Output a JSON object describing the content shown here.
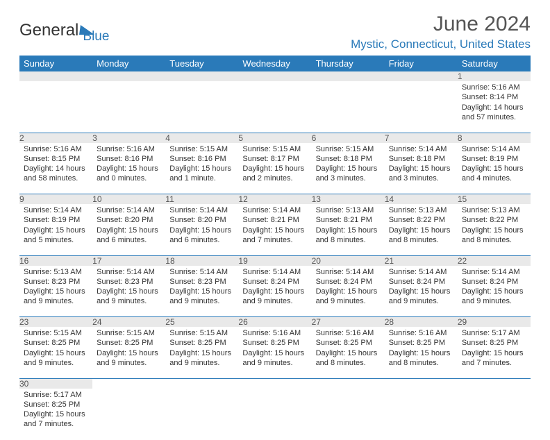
{
  "logo": {
    "text1": "General",
    "text2": "Blue"
  },
  "title": "June 2024",
  "location": "Mystic, Connecticut, United States",
  "colors": {
    "accent": "#2a7ab9",
    "header_text": "#ffffff",
    "daynum_bg": "#e9e9e9",
    "body_bg": "#ffffff",
    "text": "#333333"
  },
  "weekdays": [
    "Sunday",
    "Monday",
    "Tuesday",
    "Wednesday",
    "Thursday",
    "Friday",
    "Saturday"
  ],
  "weeks": [
    {
      "nums": [
        "",
        "",
        "",
        "",
        "",
        "",
        "1"
      ],
      "cells": [
        null,
        null,
        null,
        null,
        null,
        null,
        {
          "sunrise": "Sunrise: 5:16 AM",
          "sunset": "Sunset: 8:14 PM",
          "daylight": "Daylight: 14 hours and 57 minutes."
        }
      ]
    },
    {
      "nums": [
        "2",
        "3",
        "4",
        "5",
        "6",
        "7",
        "8"
      ],
      "cells": [
        {
          "sunrise": "Sunrise: 5:16 AM",
          "sunset": "Sunset: 8:15 PM",
          "daylight": "Daylight: 14 hours and 58 minutes."
        },
        {
          "sunrise": "Sunrise: 5:16 AM",
          "sunset": "Sunset: 8:16 PM",
          "daylight": "Daylight: 15 hours and 0 minutes."
        },
        {
          "sunrise": "Sunrise: 5:15 AM",
          "sunset": "Sunset: 8:16 PM",
          "daylight": "Daylight: 15 hours and 1 minute."
        },
        {
          "sunrise": "Sunrise: 5:15 AM",
          "sunset": "Sunset: 8:17 PM",
          "daylight": "Daylight: 15 hours and 2 minutes."
        },
        {
          "sunrise": "Sunrise: 5:15 AM",
          "sunset": "Sunset: 8:18 PM",
          "daylight": "Daylight: 15 hours and 3 minutes."
        },
        {
          "sunrise": "Sunrise: 5:14 AM",
          "sunset": "Sunset: 8:18 PM",
          "daylight": "Daylight: 15 hours and 3 minutes."
        },
        {
          "sunrise": "Sunrise: 5:14 AM",
          "sunset": "Sunset: 8:19 PM",
          "daylight": "Daylight: 15 hours and 4 minutes."
        }
      ]
    },
    {
      "nums": [
        "9",
        "10",
        "11",
        "12",
        "13",
        "14",
        "15"
      ],
      "cells": [
        {
          "sunrise": "Sunrise: 5:14 AM",
          "sunset": "Sunset: 8:19 PM",
          "daylight": "Daylight: 15 hours and 5 minutes."
        },
        {
          "sunrise": "Sunrise: 5:14 AM",
          "sunset": "Sunset: 8:20 PM",
          "daylight": "Daylight: 15 hours and 6 minutes."
        },
        {
          "sunrise": "Sunrise: 5:14 AM",
          "sunset": "Sunset: 8:20 PM",
          "daylight": "Daylight: 15 hours and 6 minutes."
        },
        {
          "sunrise": "Sunrise: 5:14 AM",
          "sunset": "Sunset: 8:21 PM",
          "daylight": "Daylight: 15 hours and 7 minutes."
        },
        {
          "sunrise": "Sunrise: 5:13 AM",
          "sunset": "Sunset: 8:21 PM",
          "daylight": "Daylight: 15 hours and 8 minutes."
        },
        {
          "sunrise": "Sunrise: 5:13 AM",
          "sunset": "Sunset: 8:22 PM",
          "daylight": "Daylight: 15 hours and 8 minutes."
        },
        {
          "sunrise": "Sunrise: 5:13 AM",
          "sunset": "Sunset: 8:22 PM",
          "daylight": "Daylight: 15 hours and 8 minutes."
        }
      ]
    },
    {
      "nums": [
        "16",
        "17",
        "18",
        "19",
        "20",
        "21",
        "22"
      ],
      "cells": [
        {
          "sunrise": "Sunrise: 5:13 AM",
          "sunset": "Sunset: 8:23 PM",
          "daylight": "Daylight: 15 hours and 9 minutes."
        },
        {
          "sunrise": "Sunrise: 5:14 AM",
          "sunset": "Sunset: 8:23 PM",
          "daylight": "Daylight: 15 hours and 9 minutes."
        },
        {
          "sunrise": "Sunrise: 5:14 AM",
          "sunset": "Sunset: 8:23 PM",
          "daylight": "Daylight: 15 hours and 9 minutes."
        },
        {
          "sunrise": "Sunrise: 5:14 AM",
          "sunset": "Sunset: 8:24 PM",
          "daylight": "Daylight: 15 hours and 9 minutes."
        },
        {
          "sunrise": "Sunrise: 5:14 AM",
          "sunset": "Sunset: 8:24 PM",
          "daylight": "Daylight: 15 hours and 9 minutes."
        },
        {
          "sunrise": "Sunrise: 5:14 AM",
          "sunset": "Sunset: 8:24 PM",
          "daylight": "Daylight: 15 hours and 9 minutes."
        },
        {
          "sunrise": "Sunrise: 5:14 AM",
          "sunset": "Sunset: 8:24 PM",
          "daylight": "Daylight: 15 hours and 9 minutes."
        }
      ]
    },
    {
      "nums": [
        "23",
        "24",
        "25",
        "26",
        "27",
        "28",
        "29"
      ],
      "cells": [
        {
          "sunrise": "Sunrise: 5:15 AM",
          "sunset": "Sunset: 8:25 PM",
          "daylight": "Daylight: 15 hours and 9 minutes."
        },
        {
          "sunrise": "Sunrise: 5:15 AM",
          "sunset": "Sunset: 8:25 PM",
          "daylight": "Daylight: 15 hours and 9 minutes."
        },
        {
          "sunrise": "Sunrise: 5:15 AM",
          "sunset": "Sunset: 8:25 PM",
          "daylight": "Daylight: 15 hours and 9 minutes."
        },
        {
          "sunrise": "Sunrise: 5:16 AM",
          "sunset": "Sunset: 8:25 PM",
          "daylight": "Daylight: 15 hours and 9 minutes."
        },
        {
          "sunrise": "Sunrise: 5:16 AM",
          "sunset": "Sunset: 8:25 PM",
          "daylight": "Daylight: 15 hours and 8 minutes."
        },
        {
          "sunrise": "Sunrise: 5:16 AM",
          "sunset": "Sunset: 8:25 PM",
          "daylight": "Daylight: 15 hours and 8 minutes."
        },
        {
          "sunrise": "Sunrise: 5:17 AM",
          "sunset": "Sunset: 8:25 PM",
          "daylight": "Daylight: 15 hours and 7 minutes."
        }
      ]
    },
    {
      "nums": [
        "30",
        "",
        "",
        "",
        "",
        "",
        ""
      ],
      "cells": [
        {
          "sunrise": "Sunrise: 5:17 AM",
          "sunset": "Sunset: 8:25 PM",
          "daylight": "Daylight: 15 hours and 7 minutes."
        },
        null,
        null,
        null,
        null,
        null,
        null
      ]
    }
  ]
}
